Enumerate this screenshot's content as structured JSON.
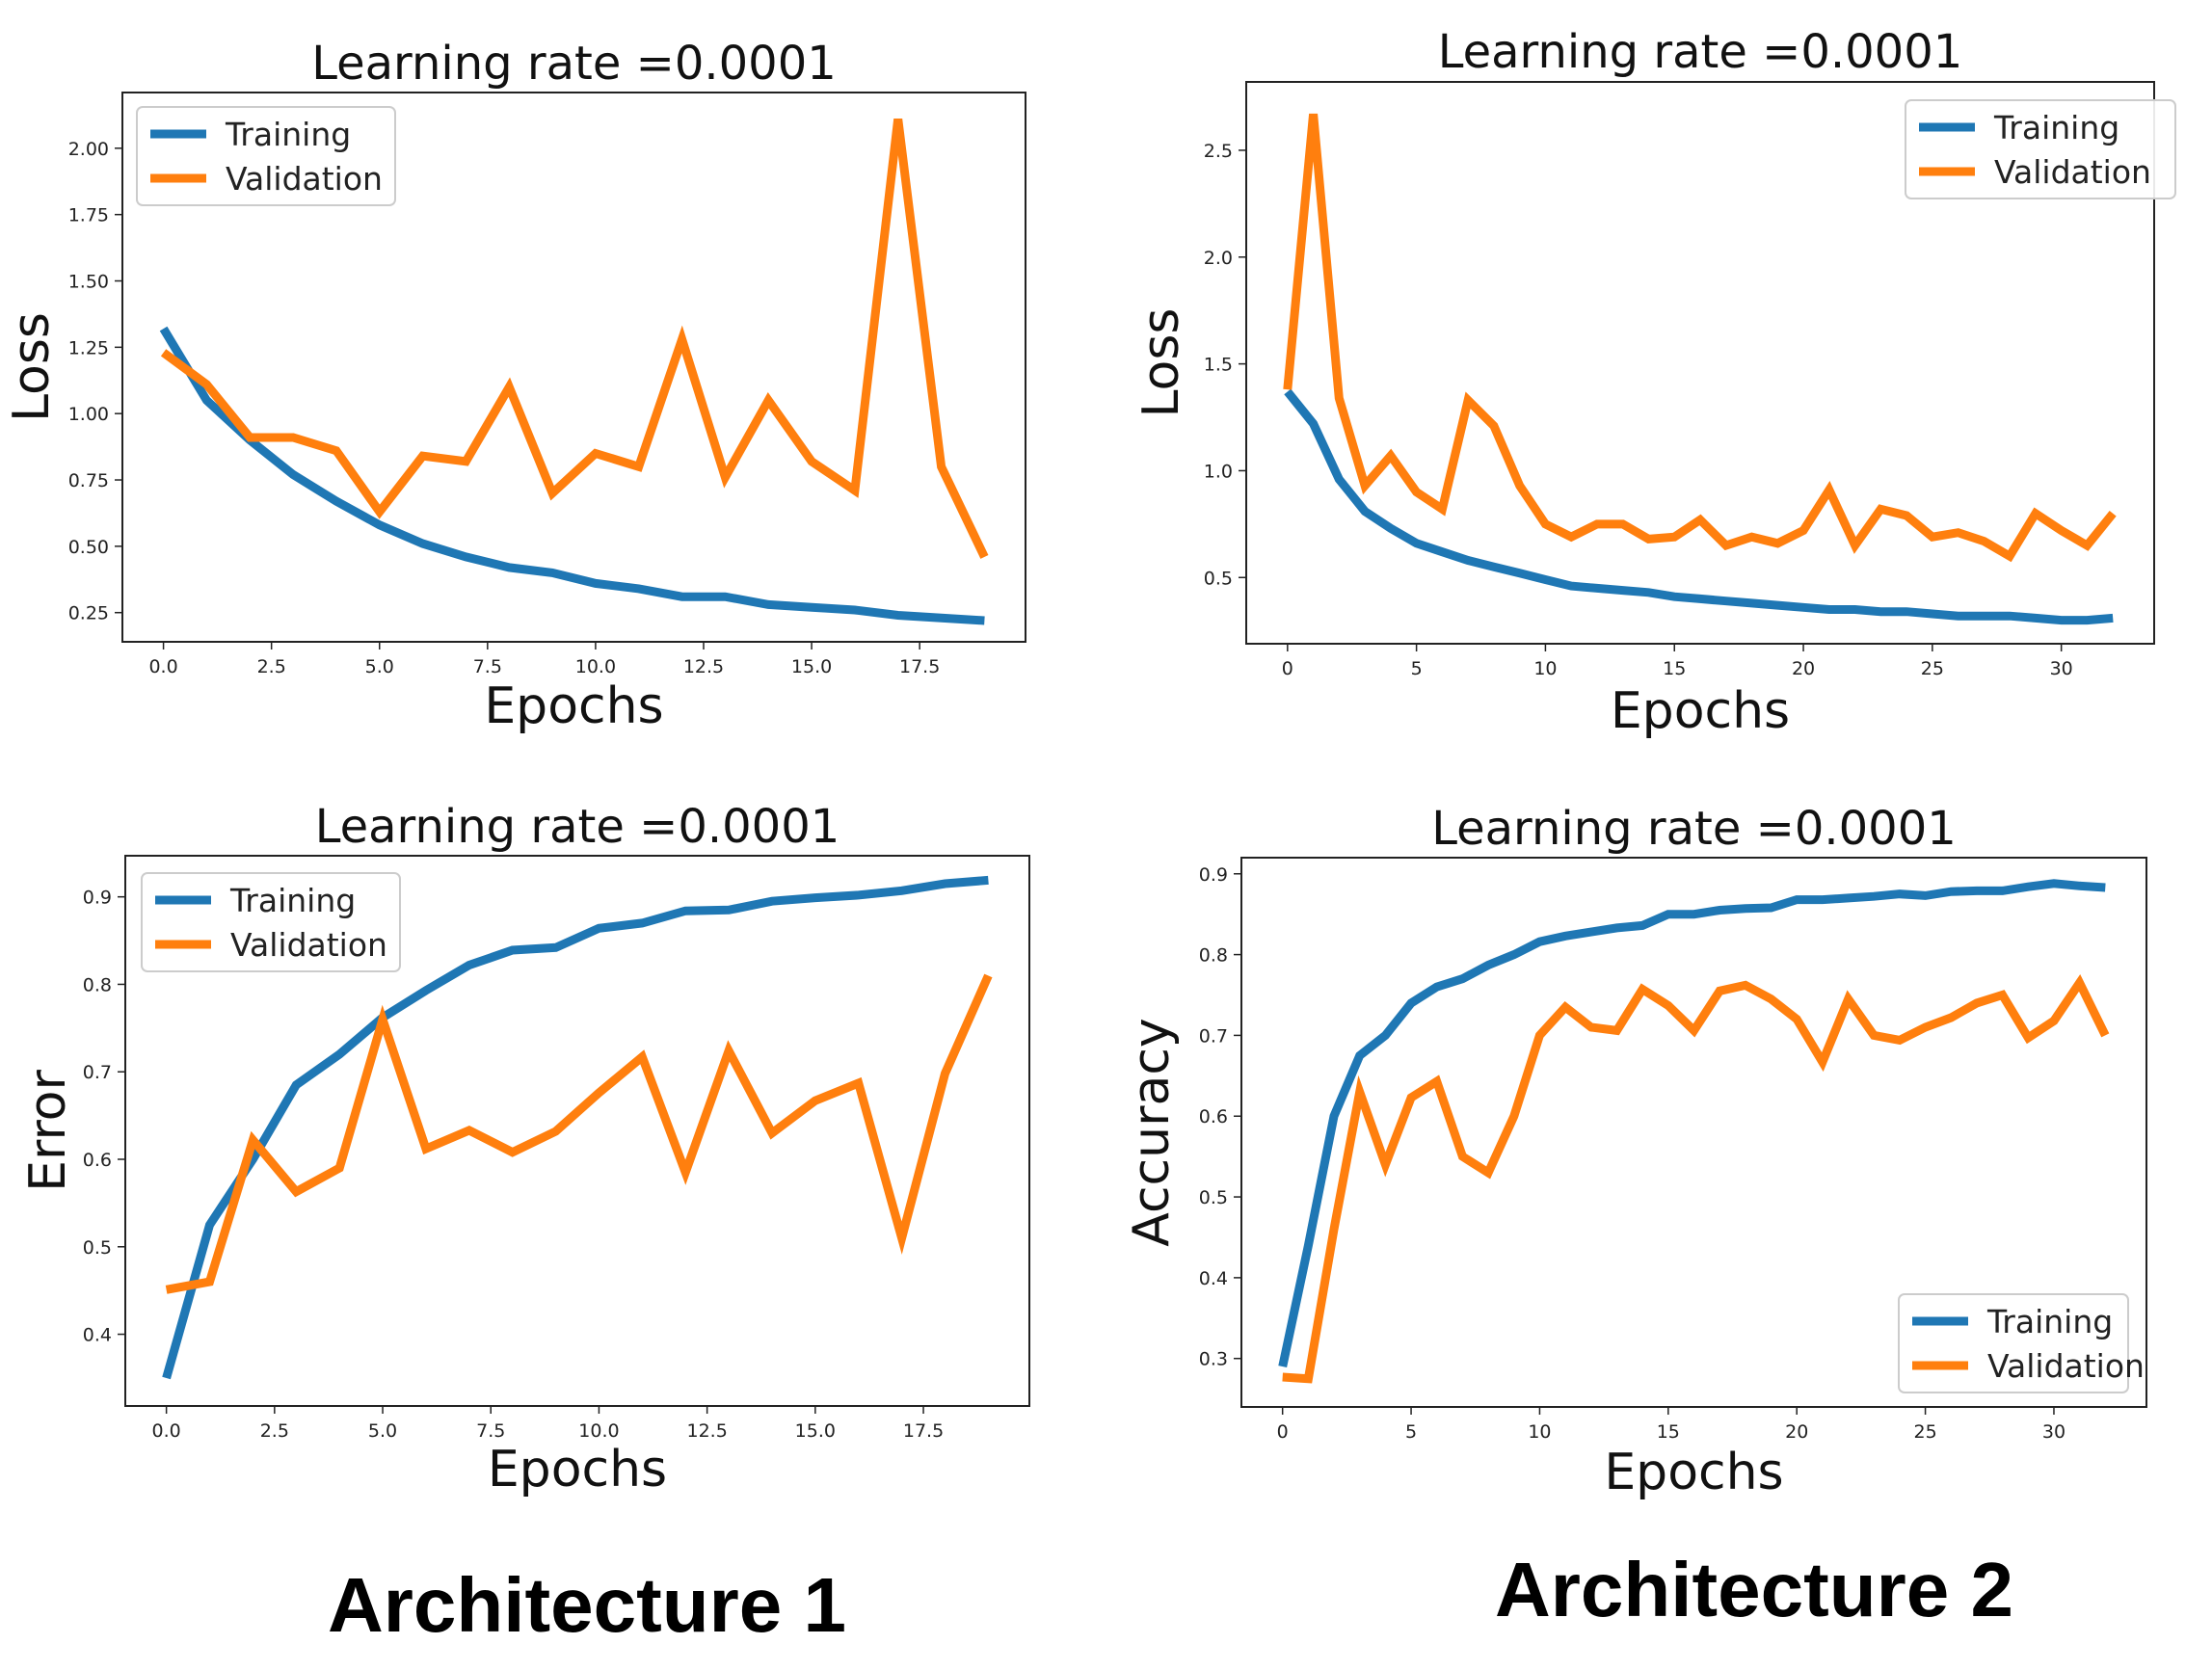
{
  "captions": {
    "left": "Architecture 1",
    "right": "Architecture 2"
  },
  "colors": {
    "training": "#1f77b4",
    "validation": "#ff7f0e"
  },
  "chart_data": [
    {
      "type": "line",
      "title": "Learning rate =0.0001",
      "xlabel": "Epochs",
      "ylabel": "Loss",
      "xlim": [
        -0.95,
        19.95
      ],
      "ylim": [
        0.14,
        2.21
      ],
      "xticks": [
        0,
        2.5,
        5,
        7.5,
        10,
        12.5,
        15,
        17.5
      ],
      "xtick_labels": [
        "0.0",
        "2.5",
        "5.0",
        "7.5",
        "10.0",
        "12.5",
        "15.0",
        "17.5"
      ],
      "yticks": [
        0.25,
        0.5,
        0.75,
        1.0,
        1.25,
        1.5,
        1.75,
        2.0
      ],
      "ytick_labels": [
        "0.25",
        "0.50",
        "0.75",
        "1.00",
        "1.25",
        "1.50",
        "1.75",
        "2.00"
      ],
      "legend": "upper-left",
      "x": [
        0,
        1,
        2,
        3,
        4,
        5,
        6,
        7,
        8,
        9,
        10,
        11,
        12,
        13,
        14,
        15,
        16,
        17,
        18,
        19
      ],
      "series": [
        {
          "name": "Training",
          "color": "#1f77b4",
          "values": [
            1.32,
            1.05,
            0.9,
            0.77,
            0.67,
            0.58,
            0.51,
            0.46,
            0.42,
            0.4,
            0.36,
            0.34,
            0.31,
            0.31,
            0.28,
            0.27,
            0.26,
            0.24,
            0.23,
            0.22
          ]
        },
        {
          "name": "Validation",
          "color": "#ff7f0e",
          "values": [
            1.23,
            1.11,
            0.91,
            0.91,
            0.86,
            0.63,
            0.84,
            0.82,
            1.1,
            0.7,
            0.85,
            0.8,
            1.28,
            0.76,
            1.05,
            0.82,
            0.71,
            2.11,
            0.8,
            0.46
          ]
        }
      ]
    },
    {
      "type": "line",
      "title": "Learning rate =0.0001",
      "xlabel": "Epochs",
      "ylabel": "Loss",
      "xlim": [
        -1.6,
        33.6
      ],
      "ylim": [
        0.19,
        2.82
      ],
      "xticks": [
        0,
        5,
        10,
        15,
        20,
        25,
        30
      ],
      "xtick_labels": [
        "0",
        "5",
        "10",
        "15",
        "20",
        "25",
        "30"
      ],
      "yticks": [
        0.5,
        1.0,
        1.5,
        2.0,
        2.5
      ],
      "ytick_labels": [
        "0.5",
        "1.0",
        "1.5",
        "2.0",
        "2.5"
      ],
      "legend": "upper-right",
      "x": [
        0,
        1,
        2,
        3,
        4,
        5,
        6,
        7,
        8,
        9,
        10,
        11,
        12,
        13,
        14,
        15,
        16,
        17,
        18,
        19,
        20,
        21,
        22,
        23,
        24,
        25,
        26,
        27,
        28,
        29,
        30,
        31,
        32
      ],
      "series": [
        {
          "name": "Training",
          "color": "#1f77b4",
          "values": [
            1.37,
            1.22,
            0.96,
            0.81,
            0.73,
            0.66,
            0.62,
            0.58,
            0.55,
            0.52,
            0.49,
            0.46,
            0.45,
            0.44,
            0.43,
            0.41,
            0.4,
            0.39,
            0.38,
            0.37,
            0.36,
            0.35,
            0.35,
            0.34,
            0.34,
            0.33,
            0.32,
            0.32,
            0.32,
            0.31,
            0.3,
            0.3,
            0.31
          ]
        },
        {
          "name": "Validation",
          "color": "#ff7f0e",
          "values": [
            1.38,
            2.67,
            1.34,
            0.93,
            1.07,
            0.9,
            0.82,
            1.33,
            1.21,
            0.93,
            0.75,
            0.69,
            0.75,
            0.75,
            0.68,
            0.69,
            0.77,
            0.65,
            0.69,
            0.66,
            0.72,
            0.91,
            0.65,
            0.82,
            0.79,
            0.69,
            0.71,
            0.67,
            0.6,
            0.8,
            0.72,
            0.65,
            0.8
          ]
        }
      ]
    },
    {
      "type": "line",
      "title": "Learning rate =0.0001",
      "xlabel": "Epochs",
      "ylabel": "Error",
      "xlim": [
        -0.95,
        19.95
      ],
      "ylim": [
        0.318,
        0.947
      ],
      "xticks": [
        0,
        2.5,
        5,
        7.5,
        10,
        12.5,
        15,
        17.5
      ],
      "xtick_labels": [
        "0.0",
        "2.5",
        "5.0",
        "7.5",
        "10.0",
        "12.5",
        "15.0",
        "17.5"
      ],
      "yticks": [
        0.4,
        0.5,
        0.6,
        0.7,
        0.8,
        0.9
      ],
      "ytick_labels": [
        "0.4",
        "0.5",
        "0.6",
        "0.7",
        "0.8",
        "0.9"
      ],
      "legend": "upper-left",
      "x": [
        0,
        1,
        2,
        3,
        4,
        5,
        6,
        7,
        8,
        9,
        10,
        11,
        12,
        13,
        14,
        15,
        16,
        17,
        18,
        19
      ],
      "series": [
        {
          "name": "Training",
          "color": "#1f77b4",
          "values": [
            0.35,
            0.525,
            0.6,
            0.685,
            0.72,
            0.762,
            0.793,
            0.822,
            0.839,
            0.842,
            0.864,
            0.87,
            0.884,
            0.885,
            0.895,
            0.899,
            0.902,
            0.907,
            0.915,
            0.919
          ]
        },
        {
          "name": "Validation",
          "color": "#ff7f0e",
          "values": [
            0.451,
            0.46,
            0.622,
            0.563,
            0.59,
            0.76,
            0.612,
            0.633,
            0.608,
            0.632,
            0.676,
            0.717,
            0.585,
            0.724,
            0.63,
            0.667,
            0.687,
            0.51,
            0.698,
            0.81
          ]
        }
      ]
    },
    {
      "type": "line",
      "title": "Learning rate =0.0001",
      "xlabel": "Epochs",
      "ylabel": "Accuracy",
      "xlim": [
        -1.6,
        33.6
      ],
      "ylim": [
        0.24,
        0.92
      ],
      "xticks": [
        0,
        5,
        10,
        15,
        20,
        25,
        30
      ],
      "xtick_labels": [
        "0",
        "5",
        "10",
        "15",
        "20",
        "25",
        "30"
      ],
      "yticks": [
        0.3,
        0.4,
        0.5,
        0.6,
        0.7,
        0.8,
        0.9
      ],
      "ytick_labels": [
        "0.3",
        "0.4",
        "0.5",
        "0.6",
        "0.7",
        "0.8",
        "0.9"
      ],
      "legend": "lower-right",
      "x": [
        0,
        1,
        2,
        3,
        4,
        5,
        6,
        7,
        8,
        9,
        10,
        11,
        12,
        13,
        14,
        15,
        16,
        17,
        18,
        19,
        20,
        21,
        22,
        23,
        24,
        25,
        26,
        27,
        28,
        29,
        30,
        31,
        32
      ],
      "series": [
        {
          "name": "Training",
          "color": "#1f77b4",
          "values": [
            0.29,
            0.44,
            0.6,
            0.675,
            0.7,
            0.74,
            0.76,
            0.77,
            0.787,
            0.8,
            0.816,
            0.823,
            0.828,
            0.833,
            0.836,
            0.85,
            0.85,
            0.855,
            0.857,
            0.858,
            0.868,
            0.868,
            0.87,
            0.872,
            0.875,
            0.873,
            0.878,
            0.879,
            0.879,
            0.884,
            0.888,
            0.885,
            0.883
          ]
        },
        {
          "name": "Validation",
          "color": "#ff7f0e",
          "values": [
            0.277,
            0.275,
            0.46,
            0.63,
            0.54,
            0.623,
            0.643,
            0.55,
            0.53,
            0.6,
            0.7,
            0.735,
            0.71,
            0.706,
            0.757,
            0.737,
            0.706,
            0.755,
            0.762,
            0.745,
            0.72,
            0.667,
            0.745,
            0.7,
            0.694,
            0.71,
            0.722,
            0.74,
            0.75,
            0.697,
            0.718,
            0.765,
            0.7
          ]
        }
      ]
    }
  ]
}
